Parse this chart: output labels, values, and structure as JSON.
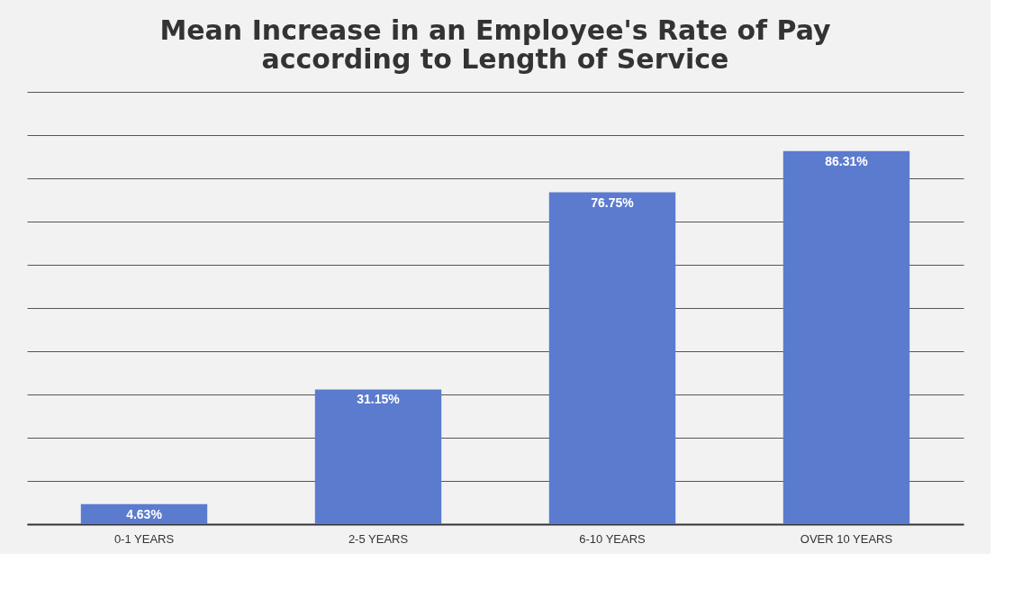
{
  "chart_data": {
    "type": "bar",
    "title": [
      "Mean Increase in an Employee's Rate of Pay",
      "according to Length of Service"
    ],
    "categories": [
      "0-1 YEARS",
      "2-5 YEARS",
      "6-10 YEARS",
      "OVER 10 YEARS"
    ],
    "values": [
      4.63,
      31.15,
      76.75,
      86.31
    ],
    "value_labels": [
      "4.63%",
      "31.15%",
      "76.75%",
      "86.31%"
    ],
    "color": "#5b7bcf",
    "ylim": [
      0,
      100
    ],
    "yticks": [
      {
        "value": 0,
        "label": null
      },
      {
        "value": 10,
        "label": null
      },
      {
        "value": 20,
        "label": null
      },
      {
        "value": 30,
        "label": null
      },
      {
        "value": 40,
        "label": null
      },
      {
        "value": 50,
        "label": null
      },
      {
        "value": 60,
        "label": null
      },
      {
        "value": 70,
        "label": null
      },
      {
        "value": 80,
        "label": null
      },
      {
        "value": 90,
        "label": null
      },
      {
        "value": 100,
        "label": null
      }
    ],
    "tick_labels": "x",
    "grid": "y"
  }
}
